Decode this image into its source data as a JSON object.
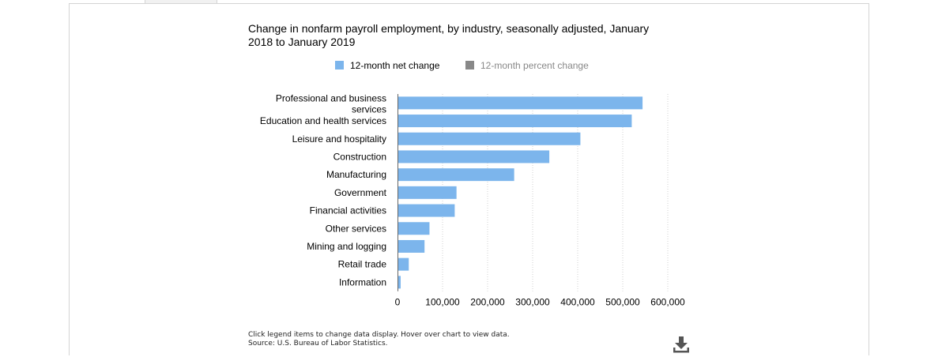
{
  "title": "Change in nonfarm payroll employment, by industry, seasonally adjusted, January 2018 to January 2019",
  "legend": [
    {
      "label": "12-month net change",
      "color": "#7cb5ec",
      "active": true
    },
    {
      "label": "12-month percent change",
      "color": "#888888",
      "active": false
    }
  ],
  "notes": {
    "line1": "Click legend items to change data display. Hover over chart to view data.",
    "line2": "Source: U.S. Bureau of Labor Statistics."
  },
  "download_icon": "download-icon",
  "chart_data": {
    "type": "bar",
    "orientation": "horizontal",
    "title": "Change in nonfarm payroll employment, by industry, seasonally adjusted, January 2018 to January 2019",
    "categories": [
      "Professional and business services",
      "Education and health services",
      "Leisure and hospitality",
      "Construction",
      "Manufacturing",
      "Government",
      "Financial activities",
      "Other services",
      "Mining and logging",
      "Retail trade",
      "Information"
    ],
    "series": [
      {
        "name": "12-month net change",
        "color": "#7cb5ec",
        "values": [
          544000,
          520000,
          406000,
          337000,
          259000,
          131000,
          127000,
          71000,
          60000,
          25000,
          7000
        ]
      }
    ],
    "xlim": [
      0,
      600000
    ],
    "ticks": [
      "0",
      "100,000",
      "200,000",
      "300,000",
      "400,000",
      "500,000",
      "600,000"
    ],
    "grid": "vertical dotted",
    "legend_position": "top"
  }
}
